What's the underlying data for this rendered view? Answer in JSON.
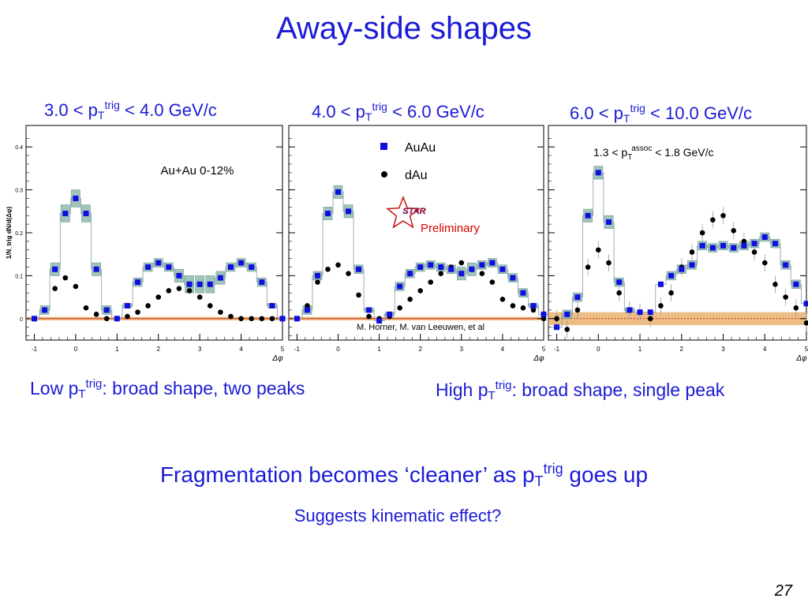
{
  "title": "Away-side shapes",
  "panel_labels": [
    {
      "pre": "3.0 < p",
      "sub": "T",
      "sup": "trig",
      "post": " < 4.0 GeV/c"
    },
    {
      "pre": "4.0 < p",
      "sub": "T",
      "sup": "trig",
      "post": " < 6.0 GeV/c"
    },
    {
      "pre": "6.0 < p",
      "sub": "T",
      "sup": "trig",
      "post": " < 10.0 GeV/c"
    }
  ],
  "panel_notes": {
    "centrality": "Au+Au 0-12%",
    "assoc": {
      "pre": "1.3 < p",
      "sub": "T",
      "sup": "assoc",
      "post": " < 1.8 GeV/c"
    },
    "legend_auau": "AuAu",
    "legend_dau": "dAu",
    "star_logo": "STAR",
    "preliminary": "Preliminary",
    "credit": "M. Horner, M. van Leeuwen, et al"
  },
  "comments": {
    "low": {
      "pre": "Low p",
      "sub": "T",
      "sup": "trig",
      "post": ": broad shape, two peaks"
    },
    "high": {
      "pre": "High p",
      "sub": "T",
      "sup": "trig",
      "post": ": broad shape, single peak"
    }
  },
  "conclusion": {
    "pre": "Fragmentation becomes ‘cleaner’ as p",
    "sub": "T",
    "sup": "trig",
    "post": " goes up"
  },
  "suggest": "Suggests kinematic effect?",
  "page_number": "27",
  "colors": {
    "text_blue": "#1b1bd6",
    "auau_marker": "#0f0fe0",
    "dau_marker": "#000000",
    "sys_band": "#8fbcb0",
    "zero_band": "#e5a75c",
    "zero_line": "#cc3322",
    "preliminary": "#dd0000"
  },
  "chart_data": [
    {
      "type": "scatter",
      "xlabel": "Δφ",
      "ylabel": "1/N_trig dN/d(Δφ)",
      "xlim": [
        -1.2,
        5.0
      ],
      "ylim": [
        -0.05,
        0.45
      ],
      "xticks": [
        -1,
        0,
        1,
        2,
        3,
        4,
        5
      ],
      "yticks": [
        0,
        0.1,
        0.2,
        0.3,
        0.4
      ],
      "x": [
        -1.0,
        -0.75,
        -0.5,
        -0.25,
        0.0,
        0.25,
        0.5,
        0.75,
        1.0,
        1.25,
        1.5,
        1.75,
        2.0,
        2.25,
        2.5,
        2.75,
        3.0,
        3.25,
        3.5,
        3.75,
        4.0,
        4.25,
        4.5,
        4.75,
        5.0
      ],
      "series": [
        {
          "name": "AuAu",
          "values": [
            0.0,
            0.02,
            0.115,
            0.245,
            0.28,
            0.245,
            0.115,
            0.02,
            0.0,
            0.03,
            0.085,
            0.12,
            0.13,
            0.12,
            0.1,
            0.08,
            0.08,
            0.08,
            0.095,
            0.12,
            0.13,
            0.12,
            0.085,
            0.03,
            0.0
          ]
        },
        {
          "name": "dAu",
          "values": [
            0.0,
            0.02,
            0.07,
            0.095,
            0.075,
            0.025,
            0.01,
            0.0,
            0.0,
            0.005,
            0.015,
            0.03,
            0.05,
            0.065,
            0.07,
            0.065,
            0.05,
            0.03,
            0.015,
            0.005,
            0.0,
            0.0,
            0.0,
            0.0,
            0.0
          ]
        }
      ],
      "sys_band_halfwidth": [
        0.0,
        0.01,
        0.015,
        0.02,
        0.02,
        0.02,
        0.015,
        0.01,
        0.0,
        0.005,
        0.01,
        0.01,
        0.01,
        0.01,
        0.015,
        0.02,
        0.02,
        0.02,
        0.015,
        0.01,
        0.01,
        0.01,
        0.01,
        0.005,
        0.0
      ]
    },
    {
      "type": "scatter",
      "xlabel": "Δφ",
      "xlim": [
        -1.2,
        5.0
      ],
      "ylim": [
        -0.05,
        0.45
      ],
      "xticks": [
        -1,
        0,
        1,
        2,
        3,
        4,
        5
      ],
      "x": [
        -1.0,
        -0.75,
        -0.5,
        -0.25,
        0.0,
        0.25,
        0.5,
        0.75,
        1.0,
        1.25,
        1.5,
        1.75,
        2.0,
        2.25,
        2.5,
        2.75,
        3.0,
        3.25,
        3.5,
        3.75,
        4.0,
        4.25,
        4.5,
        4.75,
        5.0
      ],
      "series": [
        {
          "name": "AuAu",
          "values": [
            0.0,
            0.02,
            0.1,
            0.245,
            0.295,
            0.25,
            0.115,
            0.02,
            -0.005,
            0.01,
            0.075,
            0.105,
            0.12,
            0.125,
            0.12,
            0.115,
            0.105,
            0.115,
            0.125,
            0.13,
            0.115,
            0.095,
            0.06,
            0.03,
            0.01
          ]
        },
        {
          "name": "dAu",
          "values": [
            0.0,
            0.03,
            0.085,
            0.115,
            0.125,
            0.105,
            0.055,
            0.005,
            0.0,
            0.005,
            0.025,
            0.045,
            0.065,
            0.085,
            0.105,
            0.12,
            0.13,
            0.115,
            0.105,
            0.085,
            0.045,
            0.03,
            0.025,
            0.02,
            0.0
          ]
        }
      ],
      "sys_band_halfwidth": [
        0.0,
        0.01,
        0.01,
        0.015,
        0.015,
        0.015,
        0.01,
        0.005,
        0.0,
        0.005,
        0.01,
        0.01,
        0.01,
        0.01,
        0.01,
        0.01,
        0.015,
        0.015,
        0.01,
        0.01,
        0.01,
        0.01,
        0.01,
        0.005,
        0.0
      ]
    },
    {
      "type": "scatter",
      "xlabel": "Δφ",
      "xlim": [
        -1.2,
        5.0
      ],
      "ylim": [
        -0.05,
        0.45
      ],
      "xticks": [
        -1,
        0,
        1,
        2,
        3,
        4,
        5
      ],
      "x": [
        -1.0,
        -0.75,
        -0.5,
        -0.25,
        0.0,
        0.25,
        0.5,
        0.75,
        1.0,
        1.25,
        1.5,
        1.75,
        2.0,
        2.25,
        2.5,
        2.75,
        3.0,
        3.25,
        3.5,
        3.75,
        4.0,
        4.25,
        4.5,
        4.75,
        5.0
      ],
      "series": [
        {
          "name": "AuAu",
          "values": [
            -0.02,
            0.01,
            0.05,
            0.24,
            0.34,
            0.225,
            0.085,
            0.02,
            0.015,
            0.015,
            0.08,
            0.1,
            0.115,
            0.125,
            0.17,
            0.165,
            0.17,
            0.165,
            0.17,
            0.175,
            0.19,
            0.175,
            0.125,
            0.08,
            0.035
          ]
        },
        {
          "name": "dAu",
          "values": [
            0.0,
            -0.025,
            0.02,
            0.12,
            0.16,
            0.13,
            0.06,
            0.02,
            0.015,
            0.0,
            0.03,
            0.06,
            0.12,
            0.155,
            0.2,
            0.23,
            0.24,
            0.205,
            0.18,
            0.155,
            0.13,
            0.08,
            0.05,
            0.025,
            -0.01
          ]
        }
      ],
      "sys_band_halfwidth": [
        0.0,
        0.01,
        0.01,
        0.015,
        0.015,
        0.015,
        0.01,
        0.005,
        0.0,
        0.0,
        0.0,
        0.01,
        0.01,
        0.01,
        0.01,
        0.01,
        0.01,
        0.01,
        0.01,
        0.01,
        0.01,
        0.01,
        0.01,
        0.01,
        0.0
      ],
      "zero_band_halfwidth": 0.015
    }
  ]
}
